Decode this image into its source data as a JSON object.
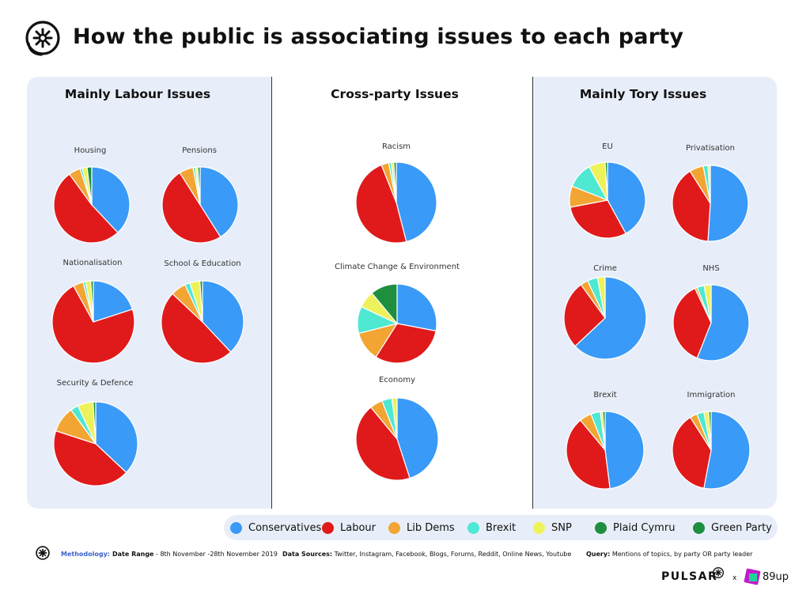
{
  "title": "How the public is associating issues to each party",
  "panels": {
    "labour_title": "Mainly Labour Issues",
    "cross_title": "Cross-party Issues",
    "tory_title": "Mainly Tory Issues"
  },
  "legend": [
    {
      "label": "Conservatives",
      "color": "#3a9af7"
    },
    {
      "label": "Labour",
      "color": "#e01a1a"
    },
    {
      "label": "Lib Dems",
      "color": "#f2a533"
    },
    {
      "label": "Brexit",
      "color": "#4fe8d3"
    },
    {
      "label": "SNP",
      "color": "#eef25a"
    },
    {
      "label": "Plaid Cymru",
      "color": "#1e8f3e"
    },
    {
      "label": "Green Party",
      "color": "#1e8f3e"
    }
  ],
  "footer": {
    "methodology_label": "Methodology:",
    "date_range_label": "Date Range",
    "date_range_value": " - 8th November -28th November 2019",
    "sources_label": "Data Sources:",
    "sources_value": " Twitter, Instagram, Facebook, Blogs, Forums, Reddit, Online News, Youtube",
    "query_label": "Query:",
    "query_value": " Mentions of topics, by party OR party leader"
  },
  "brand": {
    "pulsar": "PULSAR",
    "x": "x",
    "partner": "89up"
  },
  "chart_data": {
    "type": "pie",
    "series_names": [
      "Conservatives",
      "Labour",
      "Lib Dems",
      "Brexit",
      "SNP",
      "Plaid Cymru",
      "Green Party"
    ],
    "unit": "share of mentions (%)",
    "pies": [
      {
        "group": "Mainly Labour Issues",
        "name": "Housing",
        "values": [
          38,
          52,
          5,
          1,
          2,
          0,
          2
        ]
      },
      {
        "group": "Mainly Labour Issues",
        "name": "Pensions",
        "values": [
          41,
          50,
          6,
          1,
          1,
          0,
          1
        ]
      },
      {
        "group": "Mainly Labour Issues",
        "name": "Nationalisation",
        "values": [
          20,
          72,
          4,
          1,
          2,
          0,
          1
        ]
      },
      {
        "group": "Mainly Labour Issues",
        "name": "School & Education",
        "values": [
          38,
          49,
          6,
          2,
          4,
          0,
          1
        ]
      },
      {
        "group": "Mainly Labour Issues",
        "name": "Security & Defence",
        "values": [
          37,
          43,
          10,
          3,
          6,
          0,
          1
        ]
      },
      {
        "group": "Cross-party Issues",
        "name": "Racism",
        "values": [
          46,
          48,
          3,
          1,
          1,
          0,
          1
        ]
      },
      {
        "group": "Cross-party Issues",
        "name": "Climate Change & Environment",
        "values": [
          28,
          31,
          12,
          11,
          7,
          0,
          11
        ]
      },
      {
        "group": "Cross-party Issues",
        "name": "Economy",
        "values": [
          45,
          44,
          5,
          4,
          2,
          0,
          0
        ]
      },
      {
        "group": "Mainly Tory Issues",
        "name": "EU",
        "values": [
          42,
          30,
          9,
          11,
          7,
          0,
          1
        ]
      },
      {
        "group": "Mainly Tory Issues",
        "name": "Privatisation",
        "values": [
          51,
          40,
          6,
          2,
          1,
          0,
          0
        ]
      },
      {
        "group": "Mainly Tory Issues",
        "name": "Crime",
        "values": [
          63,
          27,
          3,
          4,
          3,
          0,
          0
        ]
      },
      {
        "group": "Mainly Tory Issues",
        "name": "NHS",
        "values": [
          56,
          37,
          1,
          3,
          3,
          0,
          0
        ]
      },
      {
        "group": "Mainly Tory Issues",
        "name": "Brexit",
        "values": [
          48,
          41,
          5,
          4,
          1,
          0,
          1
        ]
      },
      {
        "group": "Mainly Tory Issues",
        "name": "Immigration",
        "values": [
          53,
          38,
          3,
          3,
          2,
          0,
          1
        ]
      }
    ]
  }
}
